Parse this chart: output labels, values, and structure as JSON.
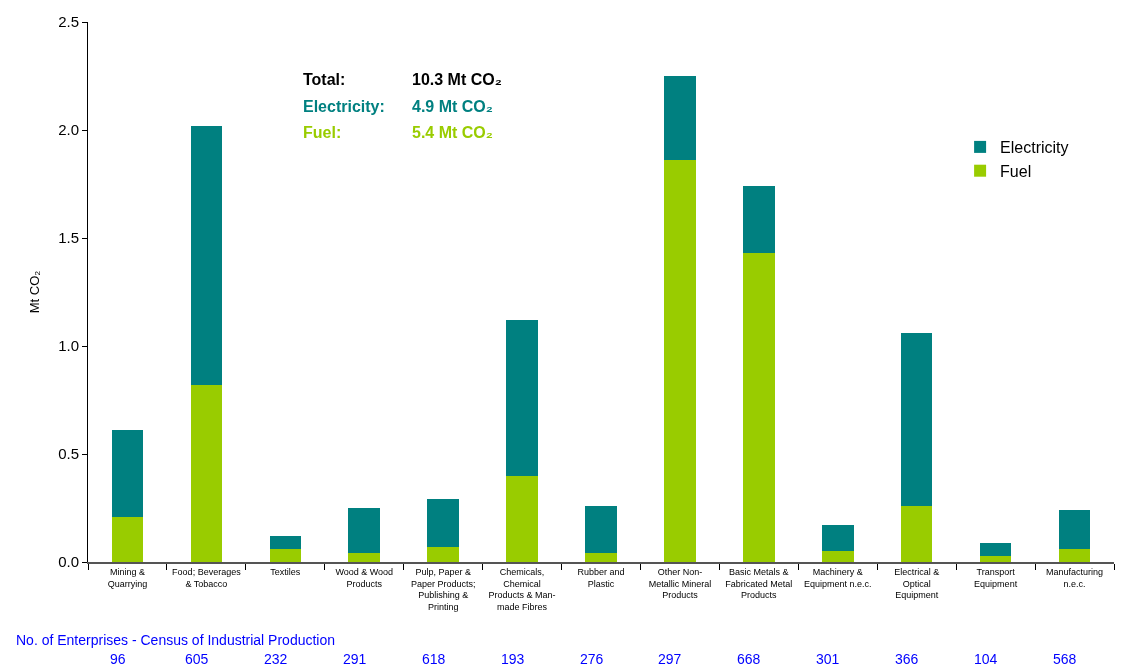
{
  "chart_data": {
    "type": "bar",
    "stacked": true,
    "ylabel": "Mt CO₂",
    "categories": [
      "Mining &\nQuarrying",
      "Food; Beverages\n& Tobacco",
      "Textiles",
      "Wood & Wood\nProducts",
      "Pulp, Paper &\nPaper Products;\nPublishing &\nPrinting",
      "Chemicals,\nChemical\nProducts & Man-\nmade Fibres",
      "Rubber and\nPlastic",
      "Other Non-\nMetallic Mineral\nProducts",
      "Basic Metals &\nFabricated Metal\nProducts",
      "Machinery &\nEquipment n.e.c.",
      "Electrical &\nOptical\nEquipment",
      "Transport\nEquipment",
      "Manufacturing\nn.e.c."
    ],
    "series": [
      {
        "name": "Fuel",
        "color": "#99cc00",
        "values": [
          0.21,
          0.82,
          0.06,
          0.04,
          0.07,
          0.4,
          0.04,
          1.86,
          1.43,
          0.05,
          0.26,
          0.03,
          0.06
        ]
      },
      {
        "name": "Electricity",
        "color": "#008080",
        "values": [
          0.4,
          1.2,
          0.06,
          0.21,
          0.22,
          0.72,
          0.22,
          0.39,
          0.31,
          0.12,
          0.8,
          0.06,
          0.18
        ]
      }
    ],
    "ylim": [
      0,
      2.5
    ],
    "yticks": [
      {
        "value": 0,
        "label": "0.0"
      },
      {
        "value": 0.5,
        "label": "0.5"
      },
      {
        "value": 1,
        "label": "1.0"
      },
      {
        "value": 1.5,
        "label": "1.5"
      },
      {
        "value": 2,
        "label": "2.0"
      },
      {
        "value": 2.5,
        "label": "2.5"
      }
    ],
    "legend": "top right",
    "annotations": [
      "Total:",
      "10.3 Mt CO₂",
      "Electricity:",
      "4.9 Mt CO₂",
      "Fuel:",
      "5.4 Mt CO₂",
      "No. of Enterprises - Census of Industrial Production",
      "96",
      "605",
      "232",
      "291",
      "618",
      "193",
      "276",
      "297",
      "668",
      "301",
      "366",
      "104",
      "568"
    ]
  }
}
